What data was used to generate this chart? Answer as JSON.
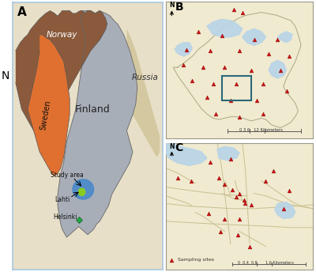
{
  "fig_width": 4.0,
  "fig_height": 3.44,
  "dpi": 100,
  "background_color": "#ffffff",
  "border_color": "#a8c8e0",
  "panel_A": {
    "bg_color": "#e8dfc8",
    "finland_color": "#a8aeb8",
    "norway_color": "#8b5a3c",
    "sweden_color": "#e07030",
    "russia_color": "#d4c8a0",
    "sea_color": "#ffffff"
  },
  "panel_B": {
    "bg_color": "#f0ead0",
    "water_color": "#b8d4e8",
    "marker_color": "#cc1111",
    "rect_color": "#2a6878",
    "scale_text": "0 3 6   12 Kilometers"
  },
  "panel_C": {
    "bg_color": "#f0ead0",
    "water_color": "#b8d4e8",
    "road_color": "#c8c090",
    "marker_color": "#cc1111",
    "scale_text": "0  0.4  0.8       1.6 Kilometers",
    "legend_text": "Sampling sites"
  }
}
